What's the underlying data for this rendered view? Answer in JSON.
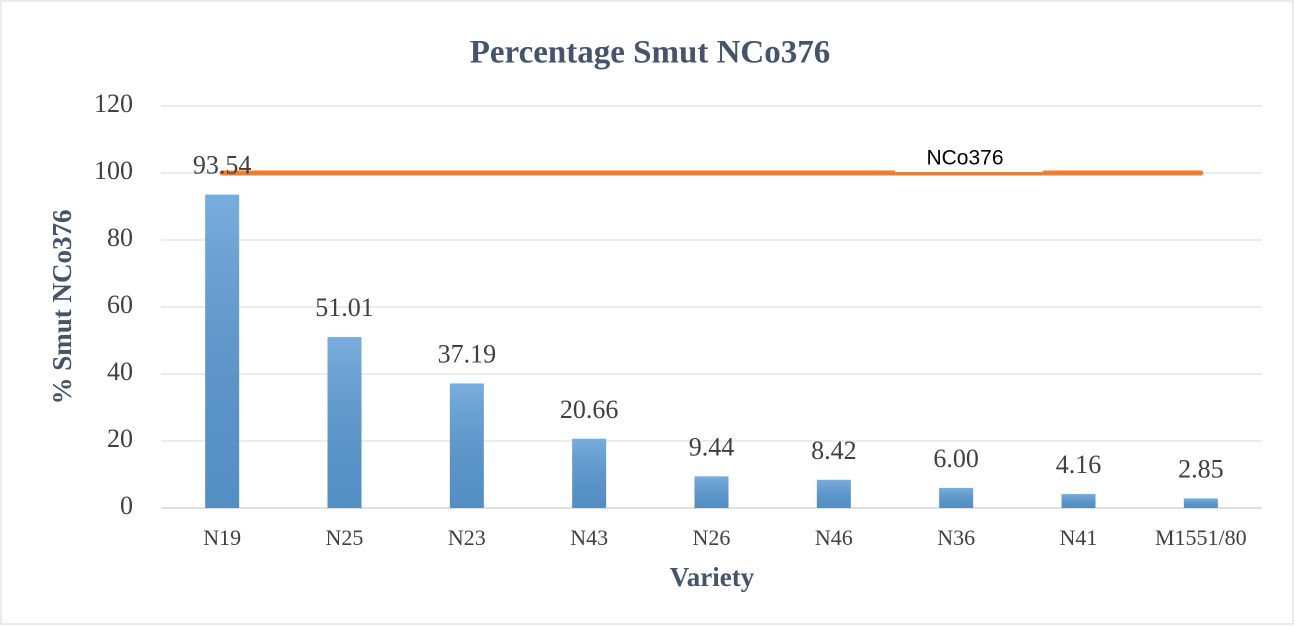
{
  "chart_data": {
    "type": "bar",
    "title": "Percentage Smut NCo376",
    "x_label": "Variety",
    "y_label": "% Smut NCo376",
    "categories": [
      "N19",
      "N25",
      "N23",
      "N43",
      "N26",
      "N46",
      "N36",
      "N41",
      "M1551/80"
    ],
    "values": [
      93.54,
      51.01,
      37.19,
      20.66,
      9.44,
      8.42,
      6.0,
      4.16,
      2.85
    ],
    "value_labels": [
      "93.54",
      "51.01",
      "37.19",
      "20.66",
      "9.44",
      "8.42",
      "6.00",
      "4.16",
      "2.85"
    ],
    "color": "#5b9bd5",
    "reference_line": {
      "name": "NCo376",
      "color": "#ed7d31",
      "values": [
        100,
        100,
        100,
        100,
        100,
        100,
        100,
        100,
        100
      ]
    },
    "ylim": [
      0,
      120
    ],
    "yticks": [
      0,
      20,
      40,
      60,
      80,
      100,
      120
    ],
    "grid": true
  }
}
